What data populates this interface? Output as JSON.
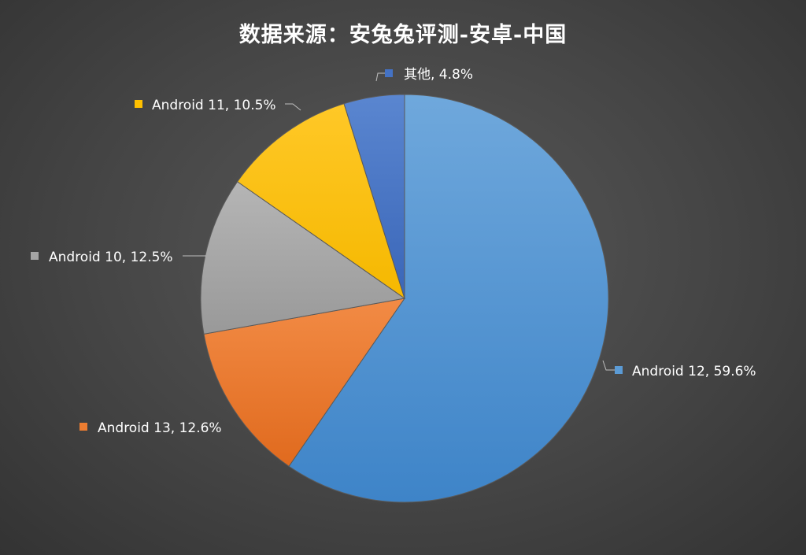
{
  "chart_data": {
    "type": "pie",
    "title": "数据来源：安兔兔评测-安卓-中国",
    "slices": [
      {
        "name": "Android 12",
        "value": 59.6,
        "label": "Android 12, 59.6%",
        "color": "#5B9BD5"
      },
      {
        "name": "Android 13",
        "value": 12.6,
        "label": "Android 13, 12.6%",
        "color": "#ED7D31"
      },
      {
        "name": "Android 10",
        "value": 12.5,
        "label": "Android 10, 12.5%",
        "color": "#A5A5A5"
      },
      {
        "name": "Android 11",
        "value": 10.5,
        "label": "Android 11, 10.5%",
        "color": "#FFC000"
      },
      {
        "name": "其他",
        "value": 4.8,
        "label": "其他, 4.8%",
        "color": "#4472C4"
      }
    ]
  }
}
